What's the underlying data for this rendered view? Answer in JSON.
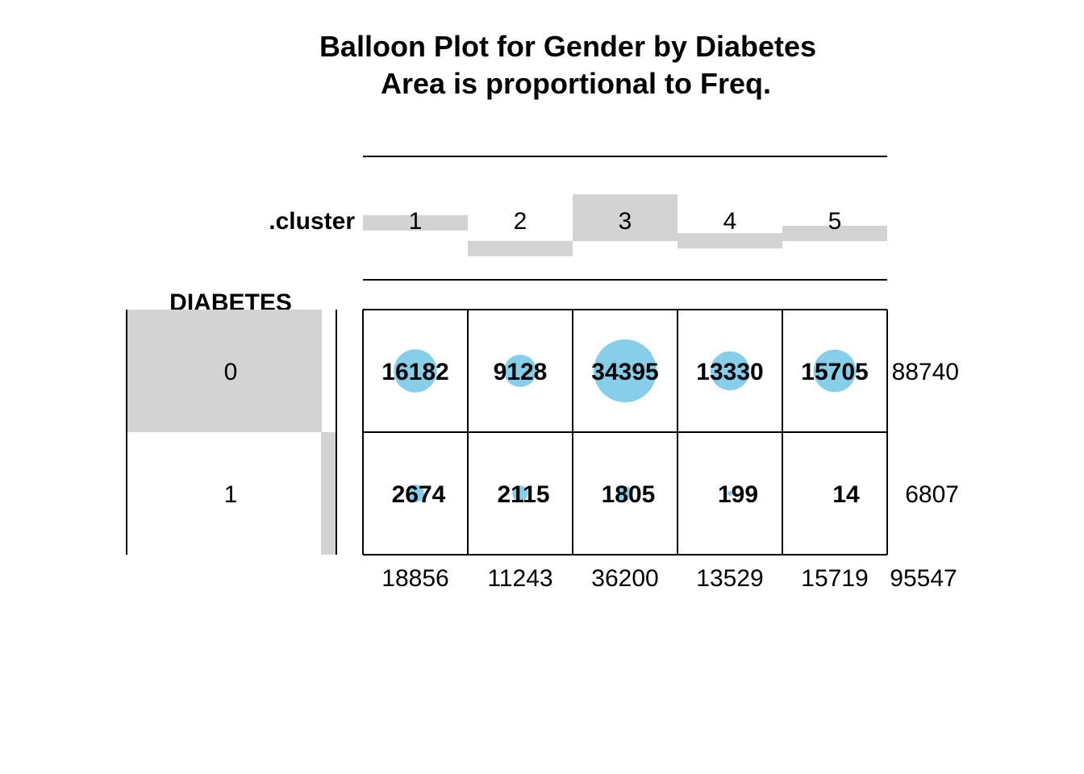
{
  "chart_data": {
    "type": "table",
    "subtype": "balloon",
    "title_lines": [
      "Balloon Plot for Gender by Diabetes",
      "Area is proportional to Freq."
    ],
    "column_variable": ".cluster",
    "row_variable": "DIABETES",
    "columns": [
      "1",
      "2",
      "3",
      "4",
      "5"
    ],
    "rows": [
      "0",
      "1"
    ],
    "values": [
      [
        16182,
        9128,
        34395,
        13330,
        15705
      ],
      [
        2674,
        2115,
        1805,
        199,
        14
      ]
    ],
    "cell_labels": [
      [
        "16182",
        "9128",
        "34395",
        "13330",
        "15705"
      ],
      [
        "2674",
        "2115",
        "1805",
        "199",
        "14"
      ]
    ],
    "row_totals": [
      "88740",
      "6807"
    ],
    "column_totals": [
      "18856",
      "11243",
      "36200",
      "13529",
      "15719"
    ],
    "grand_total": "95547",
    "column_margin_values": [
      18856,
      11243,
      36200,
      13529,
      15719
    ],
    "row_margin_values": [
      88740,
      6807
    ],
    "balloon_color": "#87CEEB",
    "margin_bar_color": "#D3D3D3"
  }
}
